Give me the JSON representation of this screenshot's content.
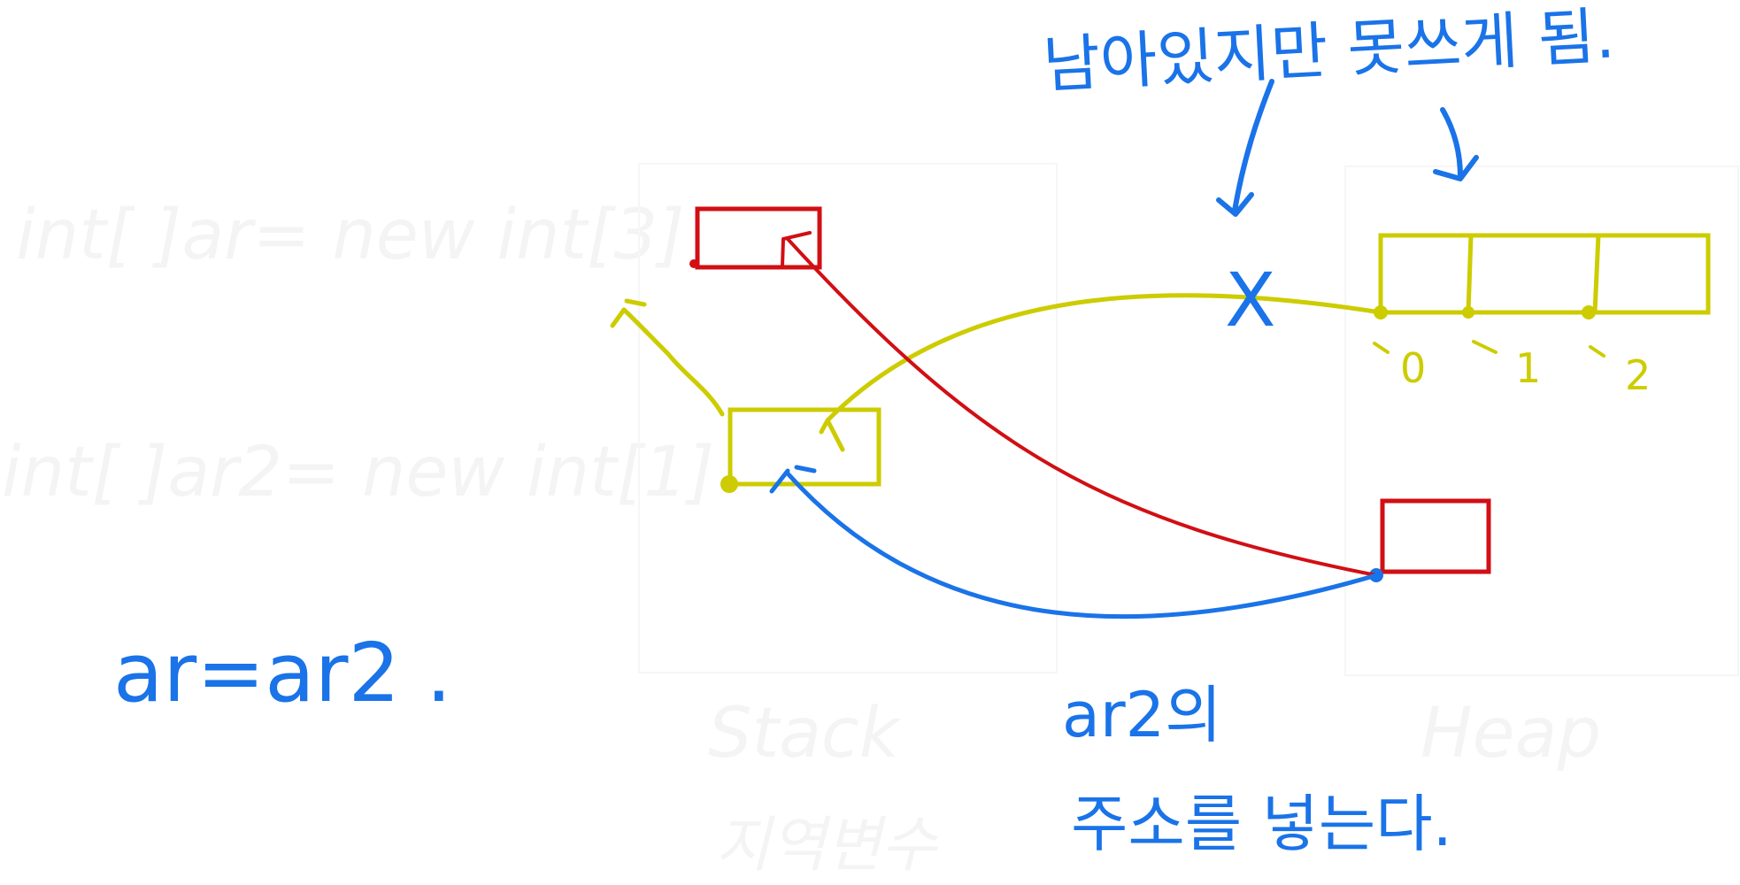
{
  "colors": {
    "blue": "#1a73e8",
    "red": "#d10f14",
    "yellow": "#cccc00",
    "ghost": "#f4f4f4"
  },
  "code": {
    "line1": "int[ ]ar= new int[3]",
    "line2": "int[ ]ar2= new int[1]"
  },
  "regions": {
    "stack_title": "Stack",
    "stack_subtitle": "지역변수",
    "heap_title": "Heap"
  },
  "annotations": {
    "top_note": "남아있지만 못쓰게 됨.",
    "assign_statement": "ar=ar2 .",
    "note_line1": "ar2의",
    "note_line2": "주소를 넣는다.",
    "cross_mark": "X"
  },
  "array_indices": [
    "0",
    "1",
    "2"
  ]
}
